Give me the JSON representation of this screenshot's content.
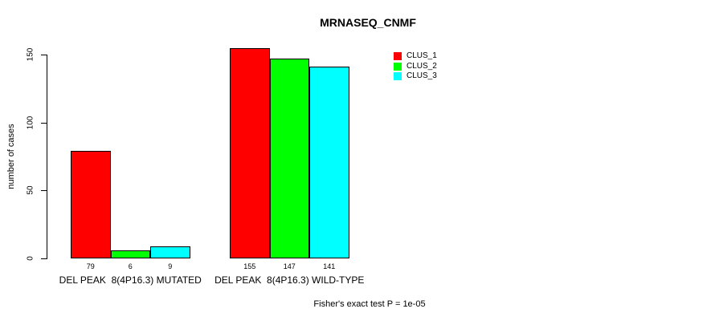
{
  "title": "MRNASEQ_CNMF",
  "chart_data": {
    "type": "bar",
    "title": "MRNASEQ_CNMF",
    "xlabel": "",
    "ylabel": "number of cases",
    "ylim": [
      0,
      150
    ],
    "yticks": [
      0,
      50,
      100,
      150
    ],
    "grid": false,
    "legend_position": "top-right",
    "categories": [
      "DEL PEAK  8(4P16.3) MUTATED",
      "DEL PEAK  8(4P16.3) WILD-TYPE"
    ],
    "series": [
      {
        "name": "CLUS_1",
        "color": "#ff0000",
        "values": [
          79,
          155
        ]
      },
      {
        "name": "CLUS_2",
        "color": "#00ff00",
        "values": [
          6,
          147
        ]
      },
      {
        "name": "CLUS_3",
        "color": "#00ffff",
        "values": [
          9,
          141
        ]
      }
    ],
    "bar_value_labels": [
      [
        79,
        155
      ],
      [
        6,
        147
      ],
      [
        9,
        141
      ]
    ],
    "annotation": "Fisher's exact test P = 1e-05"
  }
}
